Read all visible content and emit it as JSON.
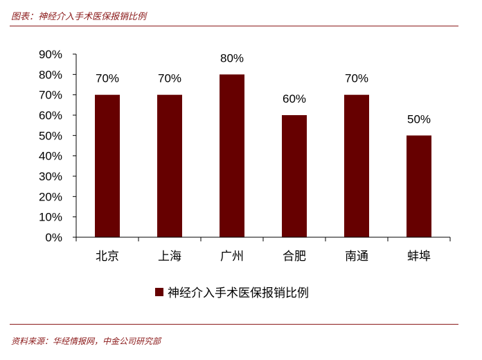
{
  "header": {
    "title": "图表：神经介入手术医保报销比例"
  },
  "footer": {
    "source": "资料来源：华经情报网，中金公司研究部"
  },
  "chart_data": {
    "type": "bar",
    "categories": [
      "北京",
      "上海",
      "广州",
      "合肥",
      "南通",
      "蚌埠"
    ],
    "series": [
      {
        "name": "神经介入手术医保报销比例",
        "values": [
          70,
          70,
          80,
          60,
          70,
          50
        ],
        "color": "#660000"
      }
    ],
    "data_labels": [
      "70%",
      "70%",
      "80%",
      "60%",
      "70%",
      "50%"
    ],
    "y_ticks": [
      "0%",
      "10%",
      "20%",
      "30%",
      "40%",
      "50%",
      "60%",
      "70%",
      "80%",
      "90%"
    ],
    "ylim": [
      0,
      90
    ],
    "y_unit": "%",
    "grid": false,
    "legend_position": "bottom"
  }
}
